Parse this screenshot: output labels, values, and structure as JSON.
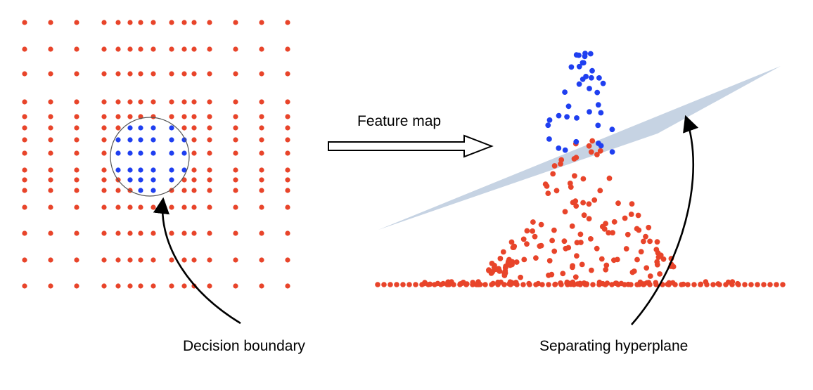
{
  "labels": {
    "feature_map": "Feature map",
    "decision_boundary": "Decision boundary",
    "separating_hyperplane": "Separating hyperplane"
  },
  "colors": {
    "outer_class": "#e8442a",
    "inner_class": "#1f3ff0",
    "hyperplane": "#c3d1e2",
    "boundary": "#555555",
    "ink": "#000000"
  },
  "icons": {
    "mapping_arrow": "hollow-right-arrow-icon",
    "pointer_arrows": "curved-pointer-arrow-icon"
  }
}
